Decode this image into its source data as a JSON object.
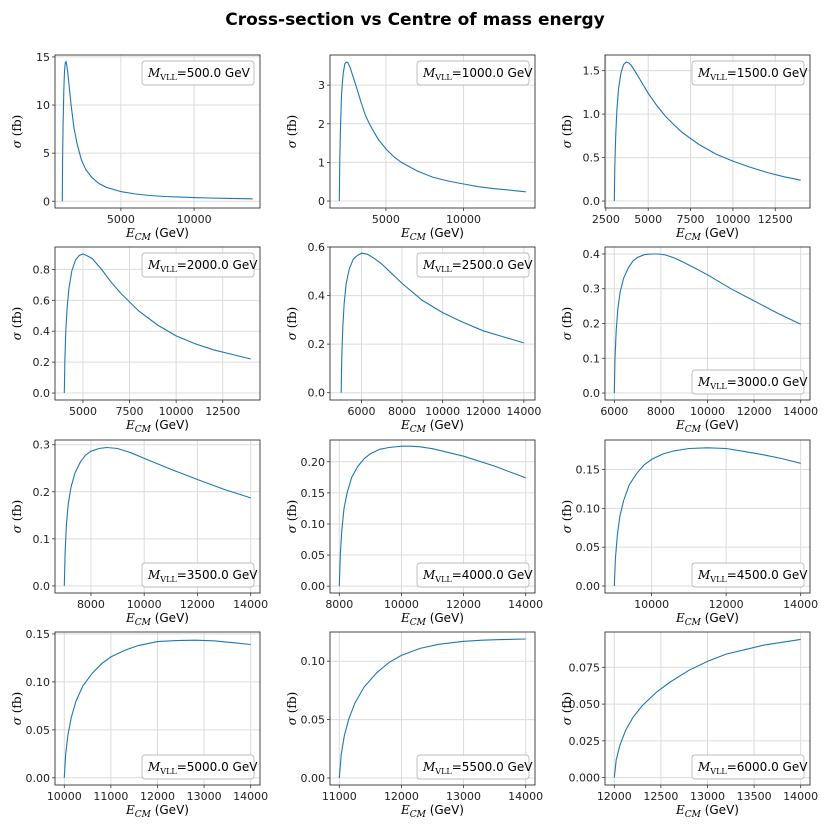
{
  "title": "Cross-section vs Centre of mass energy",
  "colors": {
    "line": "#1f77b4",
    "grid": "#dcdcdc",
    "frame": "#333333",
    "legend_border": "#bbbbbb"
  },
  "xlabel": {
    "var": "E",
    "sub": "CM",
    "unit": "(GeV)"
  },
  "ylabel": {
    "var": "σ",
    "unit": "(fb)"
  },
  "legend_prefix": {
    "var": "M",
    "sub": "VLL",
    "unit": "GeV"
  },
  "chart_data": [
    {
      "type": "line",
      "mass": "500.0",
      "legend_pos": "top-right",
      "xlim": [
        500,
        14500
      ],
      "ylim": [
        -0.7,
        15.2
      ],
      "xticks": [
        5000,
        10000
      ],
      "xtick_labels": [
        "5000",
        "10000"
      ],
      "yticks": [
        0,
        5,
        10,
        15
      ],
      "ytick_labels": [
        "0",
        "5",
        "10",
        "15"
      ],
      "x": [
        1000,
        1020,
        1050,
        1100,
        1150,
        1200,
        1250,
        1300,
        1400,
        1500,
        1600,
        1800,
        2000,
        2300,
        2600,
        3000,
        3500,
        4000,
        5000,
        6000,
        7000,
        8000,
        9000,
        10000,
        11000,
        12000,
        13000,
        14000
      ],
      "y": [
        0,
        4.5,
        8,
        11.5,
        13.5,
        14.4,
        14.5,
        14.2,
        13,
        11.5,
        10,
        7.6,
        6,
        4.3,
        3.3,
        2.5,
        1.85,
        1.45,
        1.0,
        0.75,
        0.6,
        0.5,
        0.43,
        0.38,
        0.34,
        0.31,
        0.28,
        0.26
      ]
    },
    {
      "type": "line",
      "mass": "1000.0",
      "legend_pos": "top-right",
      "xlim": [
        1400,
        14600
      ],
      "ylim": [
        -0.18,
        3.78
      ],
      "xticks": [
        5000,
        10000
      ],
      "xtick_labels": [
        "5000",
        "10000"
      ],
      "yticks": [
        0,
        1,
        2,
        3
      ],
      "ytick_labels": [
        "0",
        "1",
        "2",
        "3"
      ],
      "x": [
        2000,
        2030,
        2080,
        2150,
        2250,
        2350,
        2450,
        2550,
        2700,
        2900,
        3100,
        3400,
        3700,
        4000,
        4500,
        5000,
        5500,
        6000,
        7000,
        8000,
        9000,
        10000,
        11000,
        12000,
        13000,
        14000
      ],
      "y": [
        0,
        1.1,
        2.0,
        2.8,
        3.3,
        3.55,
        3.6,
        3.58,
        3.45,
        3.2,
        2.95,
        2.55,
        2.2,
        1.95,
        1.6,
        1.35,
        1.15,
        1.0,
        0.78,
        0.62,
        0.52,
        0.44,
        0.37,
        0.32,
        0.28,
        0.24
      ]
    },
    {
      "type": "line",
      "mass": "1500.0",
      "legend_pos": "top-right",
      "xlim": [
        2450,
        14550
      ],
      "ylim": [
        -0.08,
        1.68
      ],
      "xticks": [
        2500,
        5000,
        7500,
        10000,
        12500
      ],
      "xtick_labels": [
        "2500",
        "5000",
        "7500",
        "10000",
        "12500"
      ],
      "yticks": [
        0,
        0.5,
        1.0,
        1.5
      ],
      "ytick_labels": [
        "0.0",
        "0.5",
        "1.0",
        "1.5"
      ],
      "x": [
        3000,
        3030,
        3080,
        3150,
        3250,
        3400,
        3550,
        3700,
        3850,
        4000,
        4300,
        4600,
        5000,
        5500,
        6000,
        6500,
        7000,
        8000,
        9000,
        10000,
        11000,
        12000,
        13000,
        14000
      ],
      "y": [
        0,
        0.4,
        0.75,
        1.05,
        1.3,
        1.48,
        1.57,
        1.6,
        1.59,
        1.56,
        1.47,
        1.37,
        1.24,
        1.1,
        0.98,
        0.88,
        0.79,
        0.65,
        0.54,
        0.46,
        0.39,
        0.33,
        0.28,
        0.24
      ]
    },
    {
      "type": "line",
      "mass": "2000.0",
      "legend_pos": "top-right",
      "xlim": [
        3500,
        14500
      ],
      "ylim": [
        -0.045,
        0.945
      ],
      "xticks": [
        5000,
        7500,
        10000,
        12500
      ],
      "xtick_labels": [
        "5000",
        "7500",
        "10000",
        "12500"
      ],
      "yticks": [
        0,
        0.2,
        0.4,
        0.6,
        0.8
      ],
      "ytick_labels": [
        "0.0",
        "0.2",
        "0.4",
        "0.6",
        "0.8"
      ],
      "x": [
        4000,
        4030,
        4080,
        4150,
        4250,
        4400,
        4600,
        4800,
        5000,
        5200,
        5500,
        6000,
        6500,
        7000,
        7500,
        8000,
        9000,
        10000,
        11000,
        12000,
        13000,
        14000
      ],
      "y": [
        0,
        0.22,
        0.4,
        0.55,
        0.68,
        0.79,
        0.86,
        0.89,
        0.9,
        0.89,
        0.87,
        0.8,
        0.72,
        0.65,
        0.59,
        0.53,
        0.44,
        0.37,
        0.32,
        0.28,
        0.25,
        0.22
      ]
    },
    {
      "type": "line",
      "mass": "2500.0",
      "legend_pos": "top-right",
      "xlim": [
        4450,
        14550
      ],
      "ylim": [
        -0.03,
        0.6
      ],
      "xticks": [
        6000,
        8000,
        10000,
        12000,
        14000
      ],
      "xtick_labels": [
        "6000",
        "8000",
        "10000",
        "12000",
        "14000"
      ],
      "yticks": [
        0,
        0.2,
        0.4,
        0.6
      ],
      "ytick_labels": [
        "0.0",
        "0.2",
        "0.4",
        "0.6"
      ],
      "x": [
        5000,
        5030,
        5080,
        5150,
        5250,
        5400,
        5600,
        5800,
        6000,
        6300,
        6600,
        7000,
        7500,
        8000,
        8500,
        9000,
        10000,
        11000,
        12000,
        13000,
        14000
      ],
      "y": [
        0,
        0.15,
        0.27,
        0.37,
        0.45,
        0.51,
        0.55,
        0.565,
        0.575,
        0.57,
        0.555,
        0.53,
        0.49,
        0.45,
        0.415,
        0.38,
        0.33,
        0.29,
        0.255,
        0.23,
        0.205
      ]
    },
    {
      "type": "line",
      "mass": "3000.0",
      "legend_pos": "bottom-right",
      "xlim": [
        5600,
        14400
      ],
      "ylim": [
        -0.02,
        0.42
      ],
      "xticks": [
        6000,
        8000,
        10000,
        12000,
        14000
      ],
      "xtick_labels": [
        "6000",
        "8000",
        "10000",
        "12000",
        "14000"
      ],
      "yticks": [
        0,
        0.1,
        0.2,
        0.3,
        0.4
      ],
      "ytick_labels": [
        "0.0",
        "0.1",
        "0.2",
        "0.3",
        "0.4"
      ],
      "x": [
        6000,
        6030,
        6080,
        6150,
        6250,
        6400,
        6600,
        6800,
        7000,
        7300,
        7600,
        7900,
        8200,
        8600,
        9000,
        9500,
        10000,
        11000,
        12000,
        13000,
        14000
      ],
      "y": [
        0,
        0.1,
        0.18,
        0.24,
        0.29,
        0.33,
        0.36,
        0.38,
        0.39,
        0.398,
        0.4,
        0.4,
        0.397,
        0.388,
        0.375,
        0.358,
        0.34,
        0.3,
        0.265,
        0.23,
        0.198
      ]
    },
    {
      "type": "line",
      "mass": "3500.0",
      "legend_pos": "bottom-right",
      "xlim": [
        6650,
        14350
      ],
      "ylim": [
        -0.015,
        0.31
      ],
      "xticks": [
        8000,
        10000,
        12000,
        14000
      ],
      "xtick_labels": [
        "8000",
        "10000",
        "12000",
        "14000"
      ],
      "yticks": [
        0,
        0.1,
        0.2,
        0.3
      ],
      "ytick_labels": [
        "0.0",
        "0.1",
        "0.2",
        "0.3"
      ],
      "x": [
        7000,
        7030,
        7080,
        7150,
        7250,
        7400,
        7600,
        7800,
        8000,
        8300,
        8600,
        9000,
        9500,
        10000,
        11000,
        12000,
        13000,
        14000
      ],
      "y": [
        0,
        0.07,
        0.13,
        0.175,
        0.21,
        0.24,
        0.263,
        0.278,
        0.286,
        0.292,
        0.294,
        0.292,
        0.283,
        0.271,
        0.248,
        0.226,
        0.205,
        0.187
      ]
    },
    {
      "type": "line",
      "mass": "4000.0",
      "legend_pos": "bottom-right",
      "xlim": [
        7700,
        14300
      ],
      "ylim": [
        -0.011,
        0.235
      ],
      "xticks": [
        8000,
        10000,
        12000,
        14000
      ],
      "xtick_labels": [
        "8000",
        "10000",
        "12000",
        "14000"
      ],
      "yticks": [
        0,
        0.05,
        0.1,
        0.15,
        0.2
      ],
      "ytick_labels": [
        "0.00",
        "0.05",
        "0.10",
        "0.15",
        "0.20"
      ],
      "x": [
        8000,
        8030,
        8080,
        8150,
        8250,
        8400,
        8600,
        8800,
        9000,
        9300,
        9600,
        10000,
        10300,
        10600,
        11000,
        12000,
        13000,
        14000
      ],
      "y": [
        0,
        0.05,
        0.09,
        0.125,
        0.15,
        0.175,
        0.193,
        0.205,
        0.213,
        0.22,
        0.223,
        0.225,
        0.225,
        0.224,
        0.221,
        0.209,
        0.193,
        0.174
      ]
    },
    {
      "type": "line",
      "mass": "4500.0",
      "legend_pos": "bottom-right",
      "xlim": [
        8750,
        14250
      ],
      "ylim": [
        -0.009,
        0.188
      ],
      "xticks": [
        10000,
        12000,
        14000
      ],
      "xtick_labels": [
        "10000",
        "12000",
        "14000"
      ],
      "yticks": [
        0,
        0.05,
        0.1,
        0.15
      ],
      "ytick_labels": [
        "0.00",
        "0.05",
        "0.10",
        "0.15"
      ],
      "x": [
        9000,
        9030,
        9080,
        9150,
        9250,
        9400,
        9600,
        9800,
        10000,
        10300,
        10600,
        11000,
        11500,
        12000,
        12500,
        13000,
        13500,
        14000
      ],
      "y": [
        0,
        0.035,
        0.065,
        0.09,
        0.11,
        0.13,
        0.145,
        0.156,
        0.163,
        0.17,
        0.174,
        0.177,
        0.178,
        0.177,
        0.173,
        0.169,
        0.164,
        0.158
      ]
    },
    {
      "type": "line",
      "mass": "5000.0",
      "legend_pos": "bottom-right",
      "xlim": [
        9800,
        14200
      ],
      "ylim": [
        -0.0075,
        0.152
      ],
      "xticks": [
        10000,
        11000,
        12000,
        13000,
        14000
      ],
      "xtick_labels": [
        "10000",
        "11000",
        "12000",
        "13000",
        "14000"
      ],
      "yticks": [
        0,
        0.05,
        0.1,
        0.15
      ],
      "ytick_labels": [
        "0.00",
        "0.05",
        "0.10",
        "0.15"
      ],
      "x": [
        10000,
        10030,
        10080,
        10150,
        10250,
        10400,
        10600,
        10800,
        11000,
        11300,
        11600,
        12000,
        12400,
        12800,
        13200,
        13600,
        14000
      ],
      "y": [
        0,
        0.025,
        0.045,
        0.063,
        0.08,
        0.096,
        0.109,
        0.119,
        0.126,
        0.133,
        0.138,
        0.142,
        0.143,
        0.1435,
        0.1428,
        0.141,
        0.139
      ]
    },
    {
      "type": "line",
      "mass": "5500.0",
      "legend_pos": "bottom-right",
      "xlim": [
        10850,
        14150
      ],
      "ylim": [
        -0.006,
        0.125
      ],
      "xticks": [
        11000,
        12000,
        13000,
        14000
      ],
      "xtick_labels": [
        "11000",
        "12000",
        "13000",
        "14000"
      ],
      "yticks": [
        0,
        0.05,
        0.1
      ],
      "ytick_labels": [
        "0.00",
        "0.05",
        "0.10"
      ],
      "x": [
        11000,
        11030,
        11080,
        11150,
        11250,
        11400,
        11600,
        11800,
        12000,
        12300,
        12600,
        13000,
        13300,
        13600,
        14000
      ],
      "y": [
        0,
        0.02,
        0.036,
        0.05,
        0.064,
        0.078,
        0.09,
        0.099,
        0.105,
        0.111,
        0.1145,
        0.117,
        0.118,
        0.1185,
        0.119
      ]
    },
    {
      "type": "line",
      "mass": "6000.0",
      "legend_pos": "bottom-right",
      "xlim": [
        11900,
        14100
      ],
      "ylim": [
        -0.005,
        0.099
      ],
      "xticks": [
        12000,
        12500,
        13000,
        13500,
        14000
      ],
      "xtick_labels": [
        "12000",
        "12500",
        "13000",
        "13500",
        "14000"
      ],
      "yticks": [
        0,
        0.025,
        0.05,
        0.075
      ],
      "ytick_labels": [
        "0.000",
        "0.025",
        "0.050",
        "0.075"
      ],
      "x": [
        12000,
        12020,
        12060,
        12120,
        12200,
        12300,
        12450,
        12600,
        12800,
        13000,
        13200,
        13400,
        13600,
        13800,
        14000
      ],
      "y": [
        0,
        0.012,
        0.022,
        0.032,
        0.041,
        0.049,
        0.058,
        0.065,
        0.073,
        0.079,
        0.084,
        0.087,
        0.09,
        0.092,
        0.094
      ]
    }
  ]
}
